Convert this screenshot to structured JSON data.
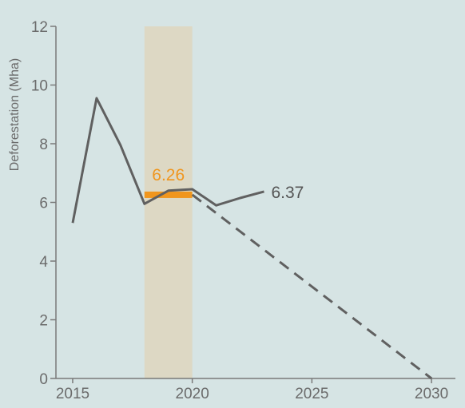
{
  "chart_data": {
    "type": "line",
    "ylabel": "Deforestation (Mha)",
    "xlabel": "",
    "xlim": [
      2014.3,
      2031
    ],
    "ylim": [
      0,
      12
    ],
    "x_ticks": [
      "2015",
      "2020",
      "2025",
      "2030"
    ],
    "x_tick_values": [
      2015,
      2020,
      2025,
      2030
    ],
    "y_ticks": [
      "0",
      "2",
      "4",
      "6",
      "8",
      "10",
      "12"
    ],
    "y_tick_values": [
      0,
      2,
      4,
      6,
      8,
      10,
      12
    ],
    "series": [
      {
        "style": "solid",
        "x": [
          2015,
          2016,
          2017,
          2018,
          2019,
          2020,
          2021,
          2022,
          2023
        ],
        "values": [
          5.3,
          9.55,
          7.95,
          5.95,
          6.4,
          6.45,
          5.9,
          6.15,
          6.37
        ]
      },
      {
        "style": "dashed",
        "x": [
          2020,
          2030
        ],
        "values": [
          6.26,
          0
        ]
      }
    ],
    "baseline_band": {
      "x_start": 2018,
      "x_end": 2020,
      "color": "#ddd8c4"
    },
    "baseline_bar": {
      "x_start": 2018,
      "x_end": 2020,
      "value": 6.26,
      "color": "#f0961e"
    },
    "annotations": [
      {
        "text": "6.26",
        "x": 2019,
        "y": 6.26,
        "color": "#f0961e"
      },
      {
        "text": "6.37",
        "x": 2023,
        "y": 6.37,
        "color": "#555555"
      }
    ],
    "line_color": "#606060",
    "grid": false
  }
}
